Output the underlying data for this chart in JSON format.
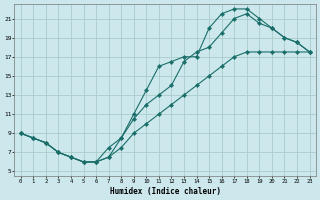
{
  "xlabel": "Humidex (Indice chaleur)",
  "bg_color": "#cce8ec",
  "grid_color": "#aacccc",
  "line_color": "#1a6e6a",
  "xlim": [
    -0.5,
    23.5
  ],
  "ylim": [
    4.5,
    22.5
  ],
  "xticks": [
    0,
    1,
    2,
    3,
    4,
    5,
    6,
    7,
    8,
    9,
    10,
    11,
    12,
    13,
    14,
    15,
    16,
    17,
    18,
    19,
    20,
    21,
    22,
    23
  ],
  "yticks": [
    5,
    7,
    9,
    11,
    13,
    15,
    17,
    19,
    21
  ],
  "line1_x": [
    0,
    1,
    2,
    3,
    4,
    5,
    6,
    7,
    8,
    9,
    10,
    11,
    12,
    13,
    14,
    15,
    16,
    17,
    18,
    19,
    20,
    21,
    22,
    23
  ],
  "line1_y": [
    9,
    8.5,
    8,
    7,
    6.5,
    6,
    6,
    7.5,
    8.5,
    11,
    13.5,
    16,
    16.5,
    17,
    17,
    20,
    21.5,
    22,
    22,
    21,
    20,
    19,
    18.5,
    17.5
  ],
  "line2_x": [
    0,
    1,
    2,
    3,
    4,
    5,
    6,
    7,
    8,
    9,
    10,
    11,
    12,
    13,
    14,
    15,
    16,
    17,
    18,
    19,
    20,
    21,
    22,
    23
  ],
  "line2_y": [
    9,
    8.5,
    8,
    7,
    6.5,
    6,
    6,
    6.5,
    8.5,
    10.5,
    12,
    13,
    14,
    16.5,
    17.5,
    18,
    19.5,
    21,
    21.5,
    20.5,
    20,
    19,
    18.5,
    17.5
  ],
  "line3_x": [
    0,
    1,
    2,
    3,
    4,
    5,
    6,
    7,
    8,
    9,
    10,
    11,
    12,
    13,
    14,
    15,
    16,
    17,
    18,
    19,
    20,
    21,
    22,
    23
  ],
  "line3_y": [
    9,
    8.5,
    8,
    7,
    6.5,
    6,
    6,
    6.5,
    7.5,
    9,
    10,
    11,
    12,
    13,
    14,
    15,
    16,
    17,
    17.5,
    17.5,
    17.5,
    17.5,
    17.5,
    17.5
  ]
}
